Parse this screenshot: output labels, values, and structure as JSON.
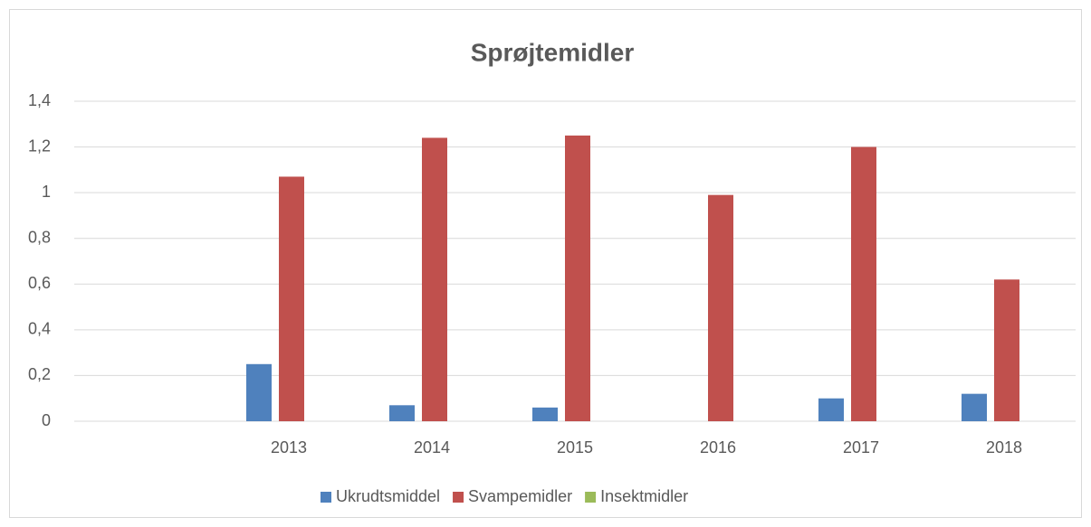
{
  "chart_data": {
    "type": "bar",
    "title": "Sprøjtemidler",
    "categories": [
      null,
      "2013",
      "2014",
      "2015",
      "2016",
      "2017",
      "2018"
    ],
    "series": [
      {
        "name": "Ukrudtsmiddel",
        "color": "#4f81bd",
        "values": [
          null,
          0.25,
          0.07,
          0.06,
          0,
          0.1,
          0.12
        ]
      },
      {
        "name": "Svampemidler",
        "color": "#c0504d",
        "values": [
          null,
          1.07,
          1.24,
          1.25,
          0.99,
          1.2,
          0.62
        ]
      },
      {
        "name": "Insektmidler",
        "color": "#9bbb59",
        "values": [
          null,
          0,
          0,
          0,
          0,
          0,
          0
        ]
      }
    ],
    "ylim": [
      0,
      1.4
    ],
    "yticks": [
      0,
      {
        "value": 0.2,
        "label": "0,2"
      },
      {
        "value": 0.4,
        "label": "0,4"
      },
      {
        "value": 0.6,
        "label": "0,6"
      },
      {
        "value": 0.8,
        "label": "0,8"
      },
      1,
      {
        "value": 1.2,
        "label": "1,2"
      },
      {
        "value": 1.4,
        "label": "1,4"
      }
    ],
    "grid": true,
    "legend": "bottom"
  }
}
